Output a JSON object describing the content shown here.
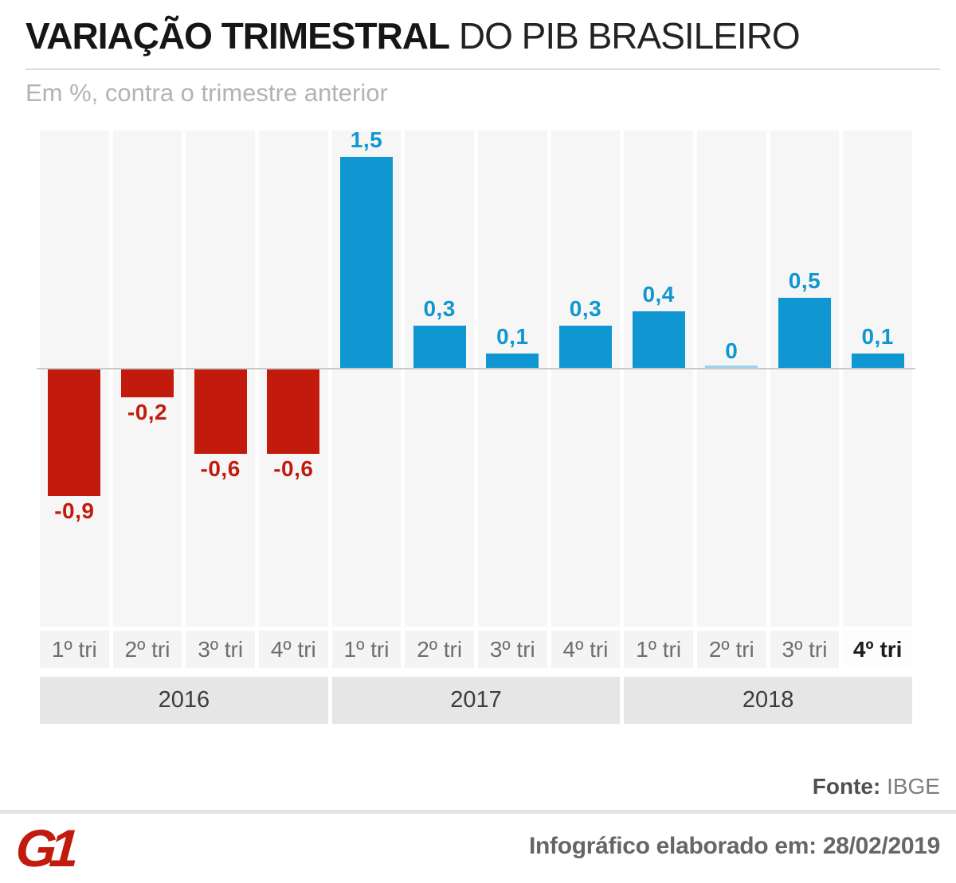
{
  "header": {
    "title_bold": "VARIAÇÃO TRIMESTRAL",
    "title_regular": " DO PIB BRASILEIRO",
    "subtitle": "Em %, contra o trimestre anterior"
  },
  "chart_data": {
    "type": "bar",
    "title": "Variação trimestral do PIB brasileiro",
    "subtitle": "Em %, contra o trimestre anterior",
    "unit": "%",
    "categories": [
      "1º tri",
      "2º tri",
      "3º tri",
      "4º tri",
      "1º tri",
      "2º tri",
      "3º tri",
      "4º tri",
      "1º tri",
      "2º tri",
      "3º tri",
      "4º tri"
    ],
    "year_groups": [
      {
        "label": "2016",
        "span": 4
      },
      {
        "label": "2017",
        "span": 4
      },
      {
        "label": "2018",
        "span": 4
      }
    ],
    "values": [
      -0.9,
      -0.2,
      -0.6,
      -0.6,
      1.5,
      0.3,
      0.1,
      0.3,
      0.4,
      0,
      0.5,
      0.1
    ],
    "value_labels": [
      "-0,9",
      "-0,2",
      "-0,6",
      "-0,6",
      "1,5",
      "0,3",
      "0,1",
      "0,3",
      "0,4",
      "0",
      "0,5",
      "0,1"
    ],
    "highlight_index": 11,
    "ylim": [
      -1.05,
      1.7
    ],
    "baseline": 0,
    "grid": false,
    "legend": false,
    "colors": {
      "positive": "#1097d1",
      "negative": "#c21b0e",
      "zero_bar": "#9fd3ec",
      "column_stripe": "#f6f6f6",
      "baseline_line": "#c8c8c8"
    }
  },
  "footer": {
    "source_label": "Fonte:",
    "source_value": " IBGE",
    "logo_text": "G1",
    "credit": "Infográfico elaborado em: 28/02/2019"
  }
}
